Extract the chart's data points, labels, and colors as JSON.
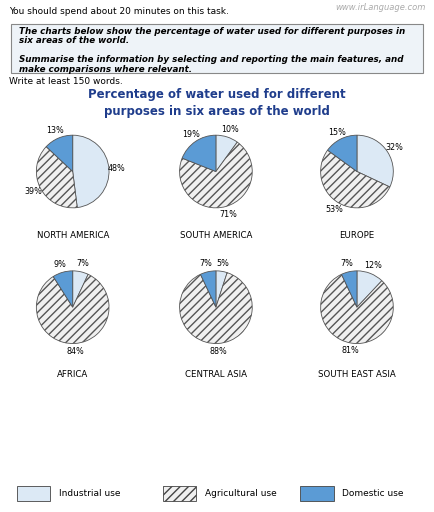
{
  "title": "Percentage of water used for different\npurposes in six areas of the world",
  "title_color": "#1f3d8c",
  "regions": [
    "NORTH AMERICA",
    "SOUTH AMERICA",
    "EUROPE",
    "AFRICA",
    "CENTRAL ASIA",
    "SOUTH EAST ASIA"
  ],
  "data": {
    "NORTH AMERICA": {
      "industrial": 48,
      "agricultural": 39,
      "domestic": 13
    },
    "SOUTH AMERICA": {
      "industrial": 10,
      "agricultural": 71,
      "domestic": 19
    },
    "EUROPE": {
      "industrial": 32,
      "agricultural": 53,
      "domestic": 15
    },
    "AFRICA": {
      "industrial": 7,
      "agricultural": 84,
      "domestic": 9
    },
    "CENTRAL ASIA": {
      "industrial": 5,
      "agricultural": 88,
      "domestic": 7
    },
    "SOUTH EAST ASIA": {
      "industrial": 12,
      "agricultural": 81,
      "domestic": 7
    }
  },
  "colors": {
    "industrial": "#dce9f5",
    "agricultural": "#f0f0f0",
    "domestic": "#5b9bd5"
  },
  "hatch": {
    "industrial": "",
    "agricultural": "////",
    "domestic": ""
  },
  "top_note": "You should spend about 20 minutes on this task.",
  "watermark": "www.irLanguage.com",
  "header_lines": [
    "The charts below show the percentage of water used for different purposes in",
    "six areas of the world.",
    "",
    "Summarise the information by selecting and reporting the main features, and",
    "make comparisons where relevant."
  ],
  "subheader": "Write at least 150 words.",
  "background": "#ffffff"
}
